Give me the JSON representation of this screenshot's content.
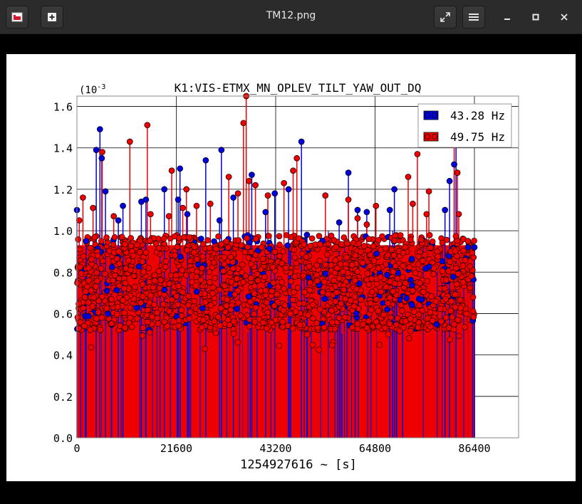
{
  "window": {
    "title": "TM12.png",
    "icons": {
      "app": "image-viewer-app-icon",
      "new_tab": "plus-icon",
      "fullscreen": "expand-icon",
      "menu": "hamburger-menu-icon",
      "minimize": "minimize-icon",
      "maximize": "maximize-icon",
      "close": "close-icon"
    }
  },
  "chart_data": {
    "type": "scatter",
    "title": "K1:VIS-ETMX_MN_OPLEV_TILT_YAW_OUT_DQ",
    "xlabel": "1254927616 ~ [s]",
    "y_multiplier": "(10",
    "y_exponent": "-3",
    "xlim": [
      0,
      96000
    ],
    "ylim": [
      0.0,
      1.65
    ],
    "xticks": [
      "0",
      "21600",
      "43200",
      "64800",
      "86400"
    ],
    "xtick_values": [
      0,
      21600,
      43200,
      64800,
      86400
    ],
    "yticks": [
      "0.0",
      "0.2",
      "0.4",
      "0.6",
      "0.8",
      "1.0",
      "1.2",
      "1.4",
      "1.6"
    ],
    "ytick_values": [
      0.0,
      0.2,
      0.4,
      0.6,
      0.8,
      1.0,
      1.2,
      1.4,
      1.6
    ],
    "grid": true,
    "legend_position": "top-right",
    "series": [
      {
        "name": "43.28 Hz",
        "color": "#0000dd",
        "peaks": [
          [
            0,
            1.1
          ],
          [
            2000,
            0.95
          ],
          [
            4200,
            1.39
          ],
          [
            5000,
            1.49
          ],
          [
            5400,
            1.35
          ],
          [
            6200,
            1.19
          ],
          [
            9000,
            1.05
          ],
          [
            10000,
            1.12
          ],
          [
            14000,
            1.14
          ],
          [
            15000,
            1.15
          ],
          [
            19000,
            1.2
          ],
          [
            22000,
            1.15
          ],
          [
            22400,
            1.3
          ],
          [
            24000,
            1.08
          ],
          [
            28000,
            1.34
          ],
          [
            31000,
            1.05
          ],
          [
            31400,
            1.39
          ],
          [
            34000,
            1.16
          ],
          [
            38000,
            1.27
          ],
          [
            41000,
            1.09
          ],
          [
            43000,
            1.18
          ],
          [
            46000,
            1.2
          ],
          [
            48800,
            1.43
          ],
          [
            50000,
            0.98
          ],
          [
            57000,
            1.04
          ],
          [
            59000,
            1.28
          ],
          [
            61000,
            1.1
          ],
          [
            63000,
            1.09
          ],
          [
            68000,
            1.1
          ],
          [
            69000,
            1.2
          ],
          [
            80000,
            1.1
          ],
          [
            81000,
            1.24
          ],
          [
            82000,
            1.32
          ],
          [
            82400,
            1.43
          ],
          [
            85000,
            0.92
          ],
          [
            86400,
            0.92
          ]
        ]
      },
      {
        "name": "49.75 Hz",
        "color": "#ee0000",
        "peaks": [
          [
            500,
            1.05
          ],
          [
            1300,
            1.16
          ],
          [
            3500,
            1.11
          ],
          [
            5500,
            1.38
          ],
          [
            8000,
            1.07
          ],
          [
            11500,
            1.43
          ],
          [
            15300,
            1.51
          ],
          [
            16000,
            1.08
          ],
          [
            20000,
            1.07
          ],
          [
            20600,
            1.29
          ],
          [
            23000,
            1.11
          ],
          [
            23800,
            1.2
          ],
          [
            26000,
            1.12
          ],
          [
            29000,
            1.13
          ],
          [
            33000,
            1.26
          ],
          [
            35000,
            1.18
          ],
          [
            36200,
            1.52
          ],
          [
            36800,
            1.65
          ],
          [
            37400,
            1.24
          ],
          [
            38800,
            1.22
          ],
          [
            41500,
            1.17
          ],
          [
            45000,
            1.23
          ],
          [
            47000,
            1.29
          ],
          [
            47800,
            1.35
          ],
          [
            54000,
            1.17
          ],
          [
            59000,
            1.15
          ],
          [
            61000,
            1.06
          ],
          [
            63000,
            1.03
          ],
          [
            65000,
            1.12
          ],
          [
            72000,
            1.26
          ],
          [
            73000,
            1.13
          ],
          [
            74000,
            1.37
          ],
          [
            76000,
            1.08
          ],
          [
            76500,
            1.19
          ],
          [
            82000,
            1.42
          ],
          [
            82700,
            1.28
          ],
          [
            83000,
            1.08
          ],
          [
            85000,
            0.95
          ]
        ]
      }
    ]
  }
}
